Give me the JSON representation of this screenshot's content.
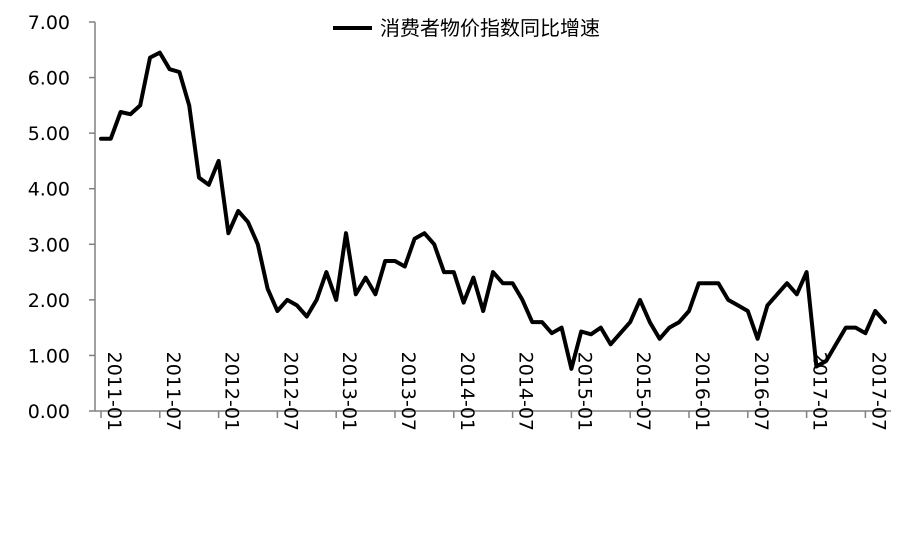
{
  "chart_data": {
    "type": "line",
    "title": "",
    "xlabel": "",
    "ylabel": "",
    "ylim": [
      0,
      7
    ],
    "yticks": [
      "0.00",
      "1.00",
      "2.00",
      "3.00",
      "4.00",
      "5.00",
      "6.00",
      "7.00"
    ],
    "x_tick_labels": [
      "2011-01",
      "2011-07",
      "2012-01",
      "2012-07",
      "2013-01",
      "2013-07",
      "2014-01",
      "2014-07",
      "2015-01",
      "2015-07",
      "2016-01",
      "2016-07",
      "2017-01",
      "2017-07"
    ],
    "grid": false,
    "legend_position": "top",
    "colors": {
      "line": "#000000",
      "axis": "#808080",
      "text": "#000000"
    },
    "x": [
      "2011-01",
      "2011-02",
      "2011-03",
      "2011-04",
      "2011-05",
      "2011-06",
      "2011-07",
      "2011-08",
      "2011-09",
      "2011-10",
      "2011-11",
      "2011-12",
      "2012-01",
      "2012-02",
      "2012-03",
      "2012-04",
      "2012-05",
      "2012-06",
      "2012-07",
      "2012-08",
      "2012-09",
      "2012-10",
      "2012-11",
      "2012-12",
      "2013-01",
      "2013-02",
      "2013-03",
      "2013-04",
      "2013-05",
      "2013-06",
      "2013-07",
      "2013-08",
      "2013-09",
      "2013-10",
      "2013-11",
      "2013-12",
      "2014-01",
      "2014-02",
      "2014-03",
      "2014-04",
      "2014-05",
      "2014-06",
      "2014-07",
      "2014-08",
      "2014-09",
      "2014-10",
      "2014-11",
      "2014-12",
      "2015-01",
      "2015-02",
      "2015-03",
      "2015-04",
      "2015-05",
      "2015-06",
      "2015-07",
      "2015-08",
      "2015-09",
      "2015-10",
      "2015-11",
      "2015-12",
      "2016-01",
      "2016-02",
      "2016-03",
      "2016-04",
      "2016-05",
      "2016-06",
      "2016-07",
      "2016-08",
      "2016-09",
      "2016-10",
      "2016-11",
      "2016-12",
      "2017-01",
      "2017-02",
      "2017-03",
      "2017-04",
      "2017-05",
      "2017-06",
      "2017-07",
      "2017-08",
      "2017-09"
    ],
    "series": [
      {
        "name": "消费者物价指数同比增速",
        "values": [
          4.9,
          4.9,
          5.38,
          5.34,
          5.5,
          6.36,
          6.45,
          6.15,
          6.1,
          5.5,
          4.2,
          4.07,
          4.5,
          3.2,
          3.6,
          3.4,
          3.0,
          2.2,
          1.8,
          2.0,
          1.9,
          1.7,
          2.0,
          2.5,
          2.0,
          3.2,
          2.1,
          2.4,
          2.1,
          2.7,
          2.7,
          2.6,
          3.1,
          3.2,
          3.0,
          2.5,
          2.5,
          1.95,
          2.4,
          1.8,
          2.5,
          2.3,
          2.3,
          2.0,
          1.6,
          1.6,
          1.4,
          1.5,
          0.76,
          1.43,
          1.38,
          1.5,
          1.2,
          1.4,
          1.6,
          2.0,
          1.6,
          1.3,
          1.5,
          1.6,
          1.8,
          2.3,
          2.3,
          2.3,
          2.0,
          1.9,
          1.8,
          1.3,
          1.9,
          2.1,
          2.3,
          2.1,
          2.5,
          0.8,
          0.9,
          1.2,
          1.5,
          1.5,
          1.4,
          1.8,
          1.6
        ]
      }
    ]
  }
}
